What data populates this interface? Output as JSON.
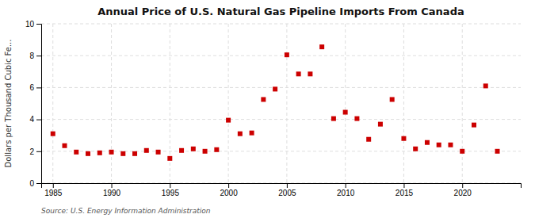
{
  "chart_data": {
    "type": "scatter",
    "title": "Annual Price of U.S. Natural Gas Pipeline Imports From Canada",
    "ylabel": "Dollars per Thousand Cubic Fe...",
    "source": "Source: U.S. Energy Information Administration",
    "x": [
      1985,
      1986,
      1987,
      1988,
      1989,
      1990,
      1991,
      1992,
      1993,
      1994,
      1995,
      1996,
      1997,
      1998,
      1999,
      2000,
      2001,
      2002,
      2003,
      2004,
      2005,
      2006,
      2007,
      2008,
      2009,
      2010,
      2011,
      2012,
      2013,
      2014,
      2015,
      2016,
      2017,
      2018,
      2019,
      2020,
      2021,
      2022,
      2023
    ],
    "values": [
      3.1,
      2.35,
      1.95,
      1.85,
      1.9,
      1.95,
      1.85,
      1.85,
      2.05,
      1.95,
      1.55,
      2.05,
      2.15,
      2.0,
      2.1,
      3.95,
      3.1,
      3.15,
      5.25,
      5.9,
      8.05,
      6.85,
      6.85,
      8.55,
      4.05,
      4.45,
      4.05,
      2.75,
      3.7,
      5.25,
      2.8,
      2.15,
      2.55,
      2.4,
      2.4,
      2.0,
      3.65,
      6.1,
      2.0
    ],
    "color": "#cc0000",
    "marker": "square",
    "xlim": [
      1984,
      2025
    ],
    "ylim": [
      0,
      10
    ],
    "xticks": [
      1985,
      1990,
      1995,
      2000,
      2005,
      2010,
      2015,
      2020
    ],
    "yticks": [
      0,
      2,
      4,
      6,
      8,
      10
    ],
    "grid": true
  }
}
